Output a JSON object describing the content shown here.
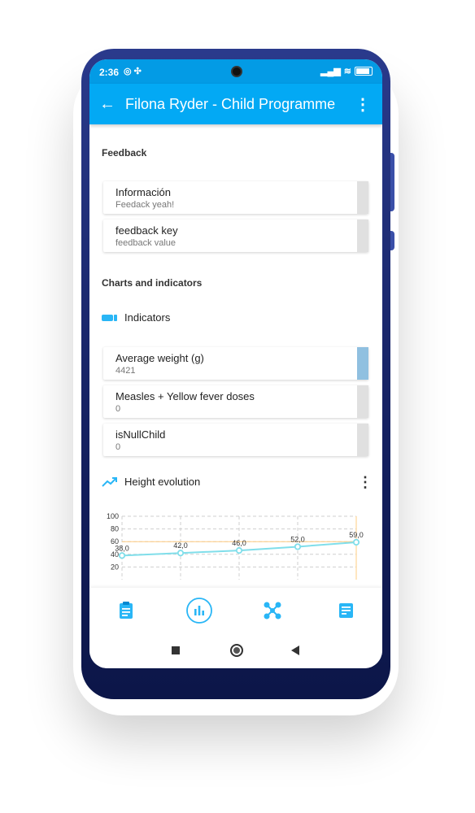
{
  "status": {
    "time": "2:36"
  },
  "appbar": {
    "title": "Filona Ryder - Child Programme"
  },
  "feedback": {
    "section_title": "Feedback",
    "items": [
      {
        "label": "Información",
        "value": "Feedack yeah!"
      },
      {
        "label": "feedback key",
        "value": "feedback value"
      }
    ]
  },
  "charts": {
    "section_title": "Charts and indicators",
    "indicators_label": "Indicators",
    "indicators": [
      {
        "label": "Average weight (g)",
        "value": "4421",
        "strip_color": "#90c0e0"
      },
      {
        "label": "Measles + Yellow fever doses",
        "value": "0",
        "strip_color": "#e0e0e0"
      },
      {
        "label": "isNullChild",
        "value": "0",
        "strip_color": "#e0e0e0"
      }
    ],
    "height_evolution_label": "Height evolution"
  },
  "chart_data": {
    "type": "line",
    "title": "Height evolution",
    "x": [
      1,
      2,
      3,
      4,
      5
    ],
    "series": [
      {
        "values": [
          38.0,
          42.0,
          46.0,
          52.0,
          59.0
        ],
        "labels": [
          "38,0",
          "42,0",
          "46,0",
          "52,0",
          "59,0"
        ]
      }
    ],
    "y_ticks": [
      "100",
      "80",
      "60",
      "40",
      "20"
    ],
    "ylim": [
      0,
      100
    ],
    "grid": true,
    "reference_line": 60,
    "line_color": "#80deea",
    "reference_color": "#ffcc80"
  },
  "colors": {
    "primary": "#03a9f4",
    "status": "#039be5",
    "accent": "#29b6f6"
  },
  "bottom_nav": [
    "clipboard-icon",
    "bar-chart-icon",
    "relationships-icon",
    "notes-icon"
  ]
}
